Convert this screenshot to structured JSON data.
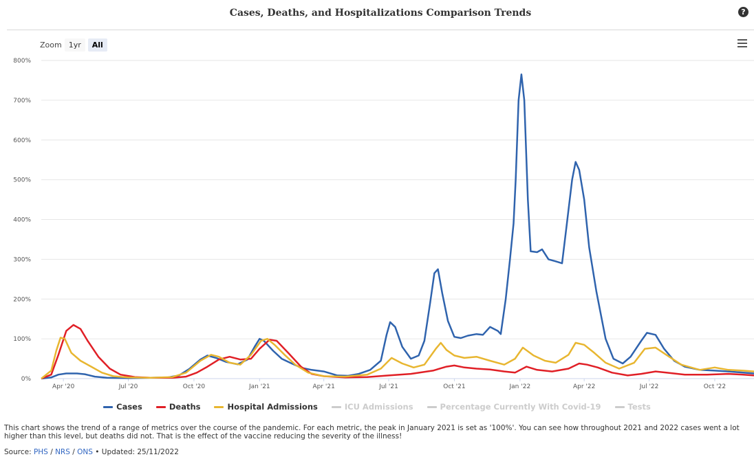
{
  "chart_data": {
    "type": "line",
    "title": "Cases, Deaths, and Hospitalizations Comparison Trends",
    "zoom": {
      "label": "Zoom",
      "options": [
        "1yr",
        "All"
      ],
      "selected": "All"
    },
    "y_axis": {
      "min": 0,
      "max": 800,
      "ticks": [
        "0%",
        "100%",
        "200%",
        "300%",
        "400%",
        "500%",
        "600%",
        "700%",
        "800%"
      ],
      "grid": true
    },
    "x_axis": {
      "start": "2020-03-01",
      "end": "2022-11-25",
      "ticks": [
        {
          "date": "2020-04-01",
          "label": "Apr '20"
        },
        {
          "date": "2020-07-01",
          "label": "Jul '20"
        },
        {
          "date": "2020-10-01",
          "label": "Oct '20"
        },
        {
          "date": "2021-01-01",
          "label": "Jan '21"
        },
        {
          "date": "2021-04-01",
          "label": "Apr '21"
        },
        {
          "date": "2021-07-01",
          "label": "Jul '21"
        },
        {
          "date": "2021-10-01",
          "label": "Oct '21"
        },
        {
          "date": "2022-01-01",
          "label": "Jan '22"
        },
        {
          "date": "2022-04-01",
          "label": "Apr '22"
        },
        {
          "date": "2022-07-01",
          "label": "Jul '22"
        },
        {
          "date": "2022-10-01",
          "label": "Oct '22"
        }
      ]
    },
    "legend_position": "bottom-center",
    "series": [
      {
        "name": "Cases",
        "color": "#2f63ad",
        "visible": true,
        "points": [
          [
            "2020-03-01",
            0
          ],
          [
            "2020-03-15",
            3
          ],
          [
            "2020-03-25",
            10
          ],
          [
            "2020-04-05",
            13
          ],
          [
            "2020-04-20",
            13
          ],
          [
            "2020-05-01",
            11
          ],
          [
            "2020-05-15",
            5
          ],
          [
            "2020-06-01",
            2
          ],
          [
            "2020-07-01",
            1
          ],
          [
            "2020-08-01",
            2
          ],
          [
            "2020-08-25",
            3
          ],
          [
            "2020-09-10",
            8
          ],
          [
            "2020-09-25",
            25
          ],
          [
            "2020-10-10",
            48
          ],
          [
            "2020-10-20",
            58
          ],
          [
            "2020-11-01",
            52
          ],
          [
            "2020-11-15",
            42
          ],
          [
            "2020-12-01",
            36
          ],
          [
            "2020-12-15",
            48
          ],
          [
            "2020-12-25",
            80
          ],
          [
            "2021-01-01",
            100
          ],
          [
            "2021-01-07",
            95
          ],
          [
            "2021-01-20",
            70
          ],
          [
            "2021-02-01",
            50
          ],
          [
            "2021-02-15",
            38
          ],
          [
            "2021-03-01",
            27
          ],
          [
            "2021-03-15",
            22
          ],
          [
            "2021-04-01",
            18
          ],
          [
            "2021-04-20",
            8
          ],
          [
            "2021-05-05",
            7
          ],
          [
            "2021-05-20",
            12
          ],
          [
            "2021-06-05",
            22
          ],
          [
            "2021-06-20",
            45
          ],
          [
            "2021-06-28",
            110
          ],
          [
            "2021-07-03",
            142
          ],
          [
            "2021-07-10",
            130
          ],
          [
            "2021-07-20",
            80
          ],
          [
            "2021-08-01",
            50
          ],
          [
            "2021-08-12",
            58
          ],
          [
            "2021-08-20",
            95
          ],
          [
            "2021-08-28",
            190
          ],
          [
            "2021-09-03",
            265
          ],
          [
            "2021-09-08",
            275
          ],
          [
            "2021-09-14",
            215
          ],
          [
            "2021-09-22",
            145
          ],
          [
            "2021-10-01",
            105
          ],
          [
            "2021-10-10",
            102
          ],
          [
            "2021-10-20",
            108
          ],
          [
            "2021-11-01",
            112
          ],
          [
            "2021-11-10",
            110
          ],
          [
            "2021-11-20",
            130
          ],
          [
            "2021-12-01",
            120
          ],
          [
            "2021-12-05",
            112
          ],
          [
            "2021-12-12",
            200
          ],
          [
            "2021-12-18",
            300
          ],
          [
            "2021-12-23",
            390
          ],
          [
            "2021-12-26",
            500
          ],
          [
            "2021-12-30",
            700
          ],
          [
            "2022-01-03",
            765
          ],
          [
            "2022-01-07",
            700
          ],
          [
            "2022-01-12",
            450
          ],
          [
            "2022-01-16",
            320
          ],
          [
            "2022-01-25",
            318
          ],
          [
            "2022-02-01",
            325
          ],
          [
            "2022-02-10",
            300
          ],
          [
            "2022-02-20",
            295
          ],
          [
            "2022-03-01",
            290
          ],
          [
            "2022-03-07",
            380
          ],
          [
            "2022-03-15",
            500
          ],
          [
            "2022-03-20",
            545
          ],
          [
            "2022-03-25",
            525
          ],
          [
            "2022-04-01",
            450
          ],
          [
            "2022-04-08",
            330
          ],
          [
            "2022-04-18",
            220
          ],
          [
            "2022-05-01",
            100
          ],
          [
            "2022-05-12",
            50
          ],
          [
            "2022-05-25",
            38
          ],
          [
            "2022-06-05",
            55
          ],
          [
            "2022-06-20",
            95
          ],
          [
            "2022-06-28",
            115
          ],
          [
            "2022-07-10",
            110
          ],
          [
            "2022-07-22",
            75
          ],
          [
            "2022-08-05",
            45
          ],
          [
            "2022-08-20",
            30
          ],
          [
            "2022-09-10",
            22
          ],
          [
            "2022-10-01",
            20
          ],
          [
            "2022-10-20",
            18
          ],
          [
            "2022-11-10",
            15
          ],
          [
            "2022-11-25",
            13
          ]
        ]
      },
      {
        "name": "Deaths",
        "color": "#e01f26",
        "visible": true,
        "points": [
          [
            "2020-03-01",
            0
          ],
          [
            "2020-03-15",
            10
          ],
          [
            "2020-03-25",
            60
          ],
          [
            "2020-04-05",
            120
          ],
          [
            "2020-04-15",
            135
          ],
          [
            "2020-04-25",
            125
          ],
          [
            "2020-05-05",
            95
          ],
          [
            "2020-05-20",
            55
          ],
          [
            "2020-06-05",
            25
          ],
          [
            "2020-06-20",
            10
          ],
          [
            "2020-07-10",
            4
          ],
          [
            "2020-08-01",
            2
          ],
          [
            "2020-09-01",
            2
          ],
          [
            "2020-09-20",
            5
          ],
          [
            "2020-10-05",
            15
          ],
          [
            "2020-10-20",
            30
          ],
          [
            "2020-11-05",
            48
          ],
          [
            "2020-11-20",
            55
          ],
          [
            "2020-12-05",
            48
          ],
          [
            "2020-12-20",
            50
          ],
          [
            "2021-01-01",
            75
          ],
          [
            "2021-01-15",
            98
          ],
          [
            "2021-01-25",
            95
          ],
          [
            "2021-02-10",
            65
          ],
          [
            "2021-02-28",
            30
          ],
          [
            "2021-03-15",
            12
          ],
          [
            "2021-04-01",
            6
          ],
          [
            "2021-05-01",
            3
          ],
          [
            "2021-06-01",
            4
          ],
          [
            "2021-07-01",
            8
          ],
          [
            "2021-08-01",
            12
          ],
          [
            "2021-09-01",
            20
          ],
          [
            "2021-09-20",
            30
          ],
          [
            "2021-10-01",
            33
          ],
          [
            "2021-10-15",
            28
          ],
          [
            "2021-11-01",
            25
          ],
          [
            "2021-11-20",
            23
          ],
          [
            "2021-12-10",
            18
          ],
          [
            "2021-12-25",
            15
          ],
          [
            "2022-01-10",
            30
          ],
          [
            "2022-01-25",
            22
          ],
          [
            "2022-02-15",
            18
          ],
          [
            "2022-03-10",
            25
          ],
          [
            "2022-03-25",
            38
          ],
          [
            "2022-04-05",
            35
          ],
          [
            "2022-04-20",
            28
          ],
          [
            "2022-05-10",
            15
          ],
          [
            "2022-06-01",
            8
          ],
          [
            "2022-06-20",
            12
          ],
          [
            "2022-07-10",
            18
          ],
          [
            "2022-07-25",
            15
          ],
          [
            "2022-08-20",
            10
          ],
          [
            "2022-09-20",
            10
          ],
          [
            "2022-10-20",
            12
          ],
          [
            "2022-11-10",
            10
          ],
          [
            "2022-11-25",
            8
          ]
        ]
      },
      {
        "name": "Hospital Admissions",
        "color": "#e8b630",
        "visible": true,
        "points": [
          [
            "2020-03-01",
            0
          ],
          [
            "2020-03-15",
            20
          ],
          [
            "2020-03-22",
            70
          ],
          [
            "2020-03-28",
            103
          ],
          [
            "2020-04-03",
            100
          ],
          [
            "2020-04-12",
            65
          ],
          [
            "2020-04-25",
            45
          ],
          [
            "2020-05-10",
            30
          ],
          [
            "2020-05-25",
            15
          ],
          [
            "2020-06-10",
            6
          ],
          [
            "2020-07-01",
            3
          ],
          [
            "2020-08-01",
            2
          ],
          [
            "2020-09-01",
            4
          ],
          [
            "2020-09-20",
            15
          ],
          [
            "2020-10-10",
            45
          ],
          [
            "2020-10-25",
            60
          ],
          [
            "2020-11-05",
            55
          ],
          [
            "2020-11-20",
            40
          ],
          [
            "2020-12-05",
            35
          ],
          [
            "2020-12-20",
            60
          ],
          [
            "2021-01-03",
            95
          ],
          [
            "2021-01-12",
            100
          ],
          [
            "2021-01-22",
            85
          ],
          [
            "2021-02-05",
            60
          ],
          [
            "2021-02-20",
            35
          ],
          [
            "2021-03-10",
            15
          ],
          [
            "2021-04-01",
            6
          ],
          [
            "2021-05-01",
            5
          ],
          [
            "2021-06-01",
            10
          ],
          [
            "2021-06-20",
            25
          ],
          [
            "2021-07-05",
            52
          ],
          [
            "2021-07-20",
            38
          ],
          [
            "2021-08-05",
            28
          ],
          [
            "2021-08-20",
            35
          ],
          [
            "2021-09-05",
            75
          ],
          [
            "2021-09-12",
            90
          ],
          [
            "2021-09-20",
            72
          ],
          [
            "2021-10-01",
            58
          ],
          [
            "2021-10-15",
            52
          ],
          [
            "2021-11-01",
            55
          ],
          [
            "2021-11-20",
            45
          ],
          [
            "2021-12-10",
            35
          ],
          [
            "2021-12-25",
            50
          ],
          [
            "2022-01-05",
            78
          ],
          [
            "2022-01-20",
            58
          ],
          [
            "2022-02-05",
            45
          ],
          [
            "2022-02-20",
            40
          ],
          [
            "2022-03-10",
            60
          ],
          [
            "2022-03-20",
            90
          ],
          [
            "2022-04-01",
            85
          ],
          [
            "2022-04-15",
            65
          ],
          [
            "2022-05-01",
            40
          ],
          [
            "2022-05-20",
            25
          ],
          [
            "2022-06-10",
            40
          ],
          [
            "2022-06-25",
            75
          ],
          [
            "2022-07-10",
            78
          ],
          [
            "2022-07-25",
            60
          ],
          [
            "2022-08-15",
            35
          ],
          [
            "2022-09-10",
            22
          ],
          [
            "2022-10-01",
            28
          ],
          [
            "2022-10-20",
            22
          ],
          [
            "2022-11-10",
            20
          ],
          [
            "2022-11-25",
            18
          ]
        ]
      },
      {
        "name": "ICU Admissions",
        "color": "#cccccc",
        "visible": false,
        "points": []
      },
      {
        "name": "Percentage Currently With Covid-19",
        "color": "#cccccc",
        "visible": false,
        "points": []
      },
      {
        "name": "Tests",
        "color": "#cccccc",
        "visible": false,
        "points": []
      }
    ]
  },
  "description": "This chart shows the trend of a range of metrics over the course of the pandemic. For each metric, the peak in January 2021 is set as '100%'. You can see how throughout 2021 and 2022 cases went a lot higher than this level, but deaths did not. That is the effect of the vaccine reducing the severity of the illness!",
  "source": {
    "label": "Source:",
    "links": [
      "PHS",
      "NRS",
      "ONS"
    ],
    "separator": " / ",
    "updated": "• Updated: 25/11/2022"
  },
  "icons": {
    "help": "question-circle-icon",
    "menu": "hamburger-menu-icon"
  }
}
